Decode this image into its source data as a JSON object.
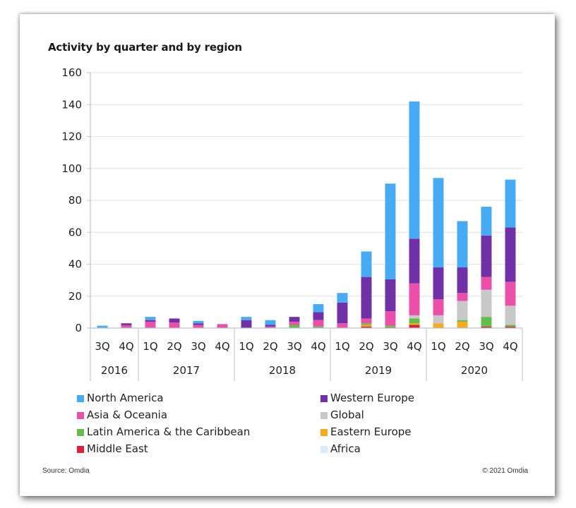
{
  "chart_data": {
    "type": "bar",
    "stacked": true,
    "title": "Activity by quarter and by region",
    "xlabel": "",
    "ylabel": "",
    "ylim": [
      0,
      160
    ],
    "yticks": [
      0,
      20,
      40,
      60,
      80,
      100,
      120,
      140,
      160
    ],
    "grid": true,
    "legend_position": "bottom",
    "categories": [
      "3Q",
      "4Q",
      "1Q",
      "2Q",
      "3Q",
      "4Q",
      "1Q",
      "2Q",
      "3Q",
      "4Q",
      "1Q",
      "2Q",
      "3Q",
      "4Q",
      "1Q",
      "2Q",
      "3Q",
      "4Q"
    ],
    "year_groups": [
      {
        "label": "2016",
        "count": 2
      },
      {
        "label": "2017",
        "count": 4
      },
      {
        "label": "2018",
        "count": 4
      },
      {
        "label": "2019",
        "count": 4
      },
      {
        "label": "2020",
        "count": 4
      }
    ],
    "series": [
      {
        "name": "Middle East",
        "color": "#e0203a",
        "values": [
          0,
          0,
          0,
          0,
          0,
          0,
          0,
          0,
          0,
          0,
          0,
          1,
          0.5,
          2,
          0,
          0,
          1,
          1
        ]
      },
      {
        "name": "Eastern Europe",
        "color": "#f4a91f",
        "values": [
          0,
          0,
          0,
          0,
          0,
          0,
          0,
          0,
          0,
          0,
          0,
          1,
          0,
          1,
          3,
          4,
          0,
          0
        ]
      },
      {
        "name": "Latin America & the Caribbean",
        "color": "#62bd4b",
        "values": [
          0,
          0,
          0,
          0,
          0,
          0,
          0,
          0,
          2,
          1,
          0,
          1,
          1,
          3,
          0,
          1,
          6,
          1
        ]
      },
      {
        "name": "Global",
        "color": "#c8c8c8",
        "values": [
          0,
          0,
          0,
          0,
          0,
          0,
          0,
          0,
          0,
          0,
          0,
          0,
          0,
          2,
          5,
          12,
          17,
          12
        ]
      },
      {
        "name": "Asia & Oceania",
        "color": "#ec4fa8",
        "values": [
          0,
          1.8,
          4,
          3.5,
          2,
          2.5,
          0,
          1,
          2,
          4,
          3,
          3,
          9,
          20,
          10,
          5,
          8,
          15
        ]
      },
      {
        "name": "Western Europe",
        "color": "#7030a8",
        "values": [
          0,
          1.2,
          1,
          2.5,
          1,
          0,
          5,
          1,
          3,
          5,
          13,
          26,
          20,
          28,
          20,
          16,
          26,
          34
        ]
      },
      {
        "name": "North America",
        "color": "#47aaf5",
        "values": [
          1.5,
          0,
          2,
          0,
          1.5,
          0,
          2,
          3,
          0,
          5,
          6,
          16,
          60,
          86,
          56,
          29,
          18,
          30
        ]
      },
      {
        "name": "Africa",
        "color": "#dcebfa",
        "values": [
          0,
          0,
          0,
          0,
          0,
          0,
          0,
          0,
          0,
          0,
          0,
          0,
          0,
          0,
          0,
          0,
          0,
          0
        ]
      }
    ]
  },
  "legend": {
    "left": [
      {
        "label": "North America",
        "color": "#47aaf5"
      },
      {
        "label": "Asia & Oceania",
        "color": "#ec4fa8"
      },
      {
        "label": "Latin America & the Caribbean",
        "color": "#62bd4b"
      },
      {
        "label": "Middle East",
        "color": "#e0203a"
      }
    ],
    "right": [
      {
        "label": "Western Europe",
        "color": "#7030a8"
      },
      {
        "label": "Global",
        "color": "#c8c8c8"
      },
      {
        "label": "Eastern Europe",
        "color": "#f4a91f"
      },
      {
        "label": "Africa",
        "color": "#dcebfa"
      }
    ]
  },
  "footer": {
    "source": "Source: Omdia",
    "copyright": "© 2021 Omdia"
  }
}
